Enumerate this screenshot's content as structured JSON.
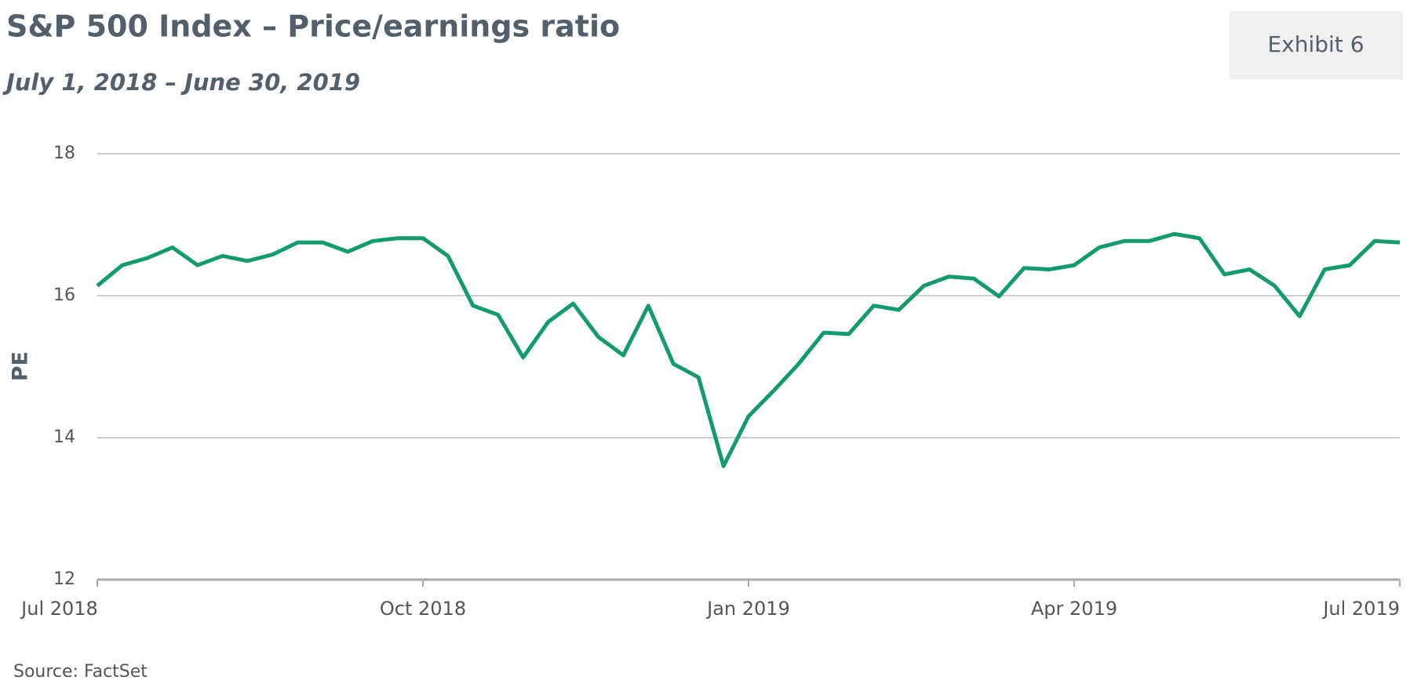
{
  "exhibit": "Exhibit 6",
  "chart_data": {
    "type": "line",
    "title": "S&P 500 Index – Price/earnings ratio",
    "subtitle": "July 1, 2018 – June 30, 2019",
    "y_label": "PE",
    "source": "Source: FactSet",
    "categories": [
      "Jul 2018",
      null,
      null,
      null,
      null,
      null,
      null,
      null,
      null,
      null,
      null,
      null,
      null,
      "Oct 2018",
      null,
      null,
      null,
      null,
      null,
      null,
      null,
      null,
      null,
      null,
      null,
      null,
      "Jan 2019",
      null,
      null,
      null,
      null,
      null,
      null,
      null,
      null,
      null,
      null,
      null,
      null,
      "Apr 2019",
      null,
      null,
      null,
      null,
      null,
      null,
      null,
      null,
      null,
      null,
      null,
      null,
      "Jul 2019"
    ],
    "values": [
      16.14,
      16.43,
      16.53,
      16.68,
      16.43,
      16.56,
      16.49,
      16.58,
      16.75,
      16.75,
      16.62,
      16.77,
      16.81,
      16.81,
      16.56,
      15.86,
      15.73,
      15.13,
      15.63,
      15.89,
      15.42,
      15.16,
      15.86,
      15.04,
      14.85,
      13.6,
      14.3,
      14.66,
      15.04,
      15.48,
      15.46,
      15.86,
      15.8,
      16.14,
      16.27,
      16.24,
      15.99,
      16.39,
      16.37,
      16.43,
      16.68,
      16.77,
      16.77,
      16.87,
      16.81,
      16.3,
      16.37,
      16.14,
      15.71,
      16.37,
      16.43,
      16.77,
      16.75
    ],
    "color": "#139b6c",
    "ylim": [
      12,
      18
    ],
    "yticks": [
      12,
      14,
      16,
      18
    ],
    "grid": true
  }
}
